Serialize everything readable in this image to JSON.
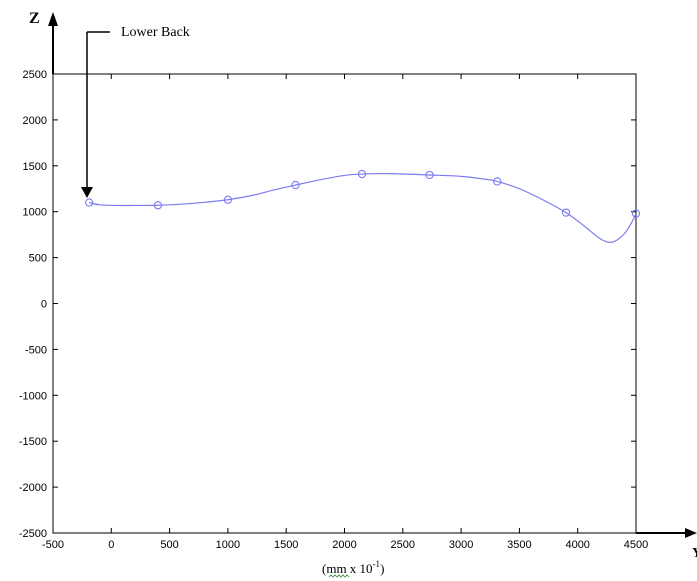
{
  "chart_data": {
    "type": "line",
    "title": "",
    "xlabel": "(mm x 10",
    "xlabel_sup": "-1",
    "xlabel_close": ")",
    "ylabel": "",
    "z_axis_letter": "Z",
    "y_axis_letter": "Y",
    "annotation": "Lower Back",
    "xlim": [
      -500,
      4500
    ],
    "ylim": [
      -2500,
      2500
    ],
    "xticks": [
      -500,
      0,
      500,
      1000,
      1500,
      2000,
      2500,
      3000,
      3500,
      4000,
      4500
    ],
    "yticks": [
      2500,
      2000,
      1500,
      1000,
      500,
      0,
      -500,
      -1000,
      -1500,
      -2000,
      -2500
    ],
    "grid": false,
    "line_color": "#7b7bf0",
    "points": [
      {
        "x": -190,
        "y": 1100
      },
      {
        "x": 400,
        "y": 1070
      },
      {
        "x": 1000,
        "y": 1130
      },
      {
        "x": 1580,
        "y": 1290
      },
      {
        "x": 2150,
        "y": 1410
      },
      {
        "x": 2730,
        "y": 1400
      },
      {
        "x": 3310,
        "y": 1330
      },
      {
        "x": 3900,
        "y": 990
      },
      {
        "x": 4500,
        "y": 980
      }
    ],
    "curve": [
      {
        "x": -190,
        "y": 1100
      },
      {
        "x": -100,
        "y": 1075
      },
      {
        "x": 50,
        "y": 1068
      },
      {
        "x": 200,
        "y": 1068
      },
      {
        "x": 400,
        "y": 1070
      },
      {
        "x": 600,
        "y": 1082
      },
      {
        "x": 800,
        "y": 1102
      },
      {
        "x": 1000,
        "y": 1130
      },
      {
        "x": 1200,
        "y": 1175
      },
      {
        "x": 1400,
        "y": 1238
      },
      {
        "x": 1580,
        "y": 1290
      },
      {
        "x": 1800,
        "y": 1350
      },
      {
        "x": 2000,
        "y": 1395
      },
      {
        "x": 2150,
        "y": 1410
      },
      {
        "x": 2400,
        "y": 1415
      },
      {
        "x": 2730,
        "y": 1400
      },
      {
        "x": 3000,
        "y": 1385
      },
      {
        "x": 3200,
        "y": 1355
      },
      {
        "x": 3310,
        "y": 1330
      },
      {
        "x": 3500,
        "y": 1250
      },
      {
        "x": 3700,
        "y": 1130
      },
      {
        "x": 3900,
        "y": 990
      },
      {
        "x": 4050,
        "y": 850
      },
      {
        "x": 4200,
        "y": 700
      },
      {
        "x": 4300,
        "y": 670
      },
      {
        "x": 4400,
        "y": 760
      },
      {
        "x": 4470,
        "y": 900
      },
      {
        "x": 4500,
        "y": 980
      }
    ]
  }
}
